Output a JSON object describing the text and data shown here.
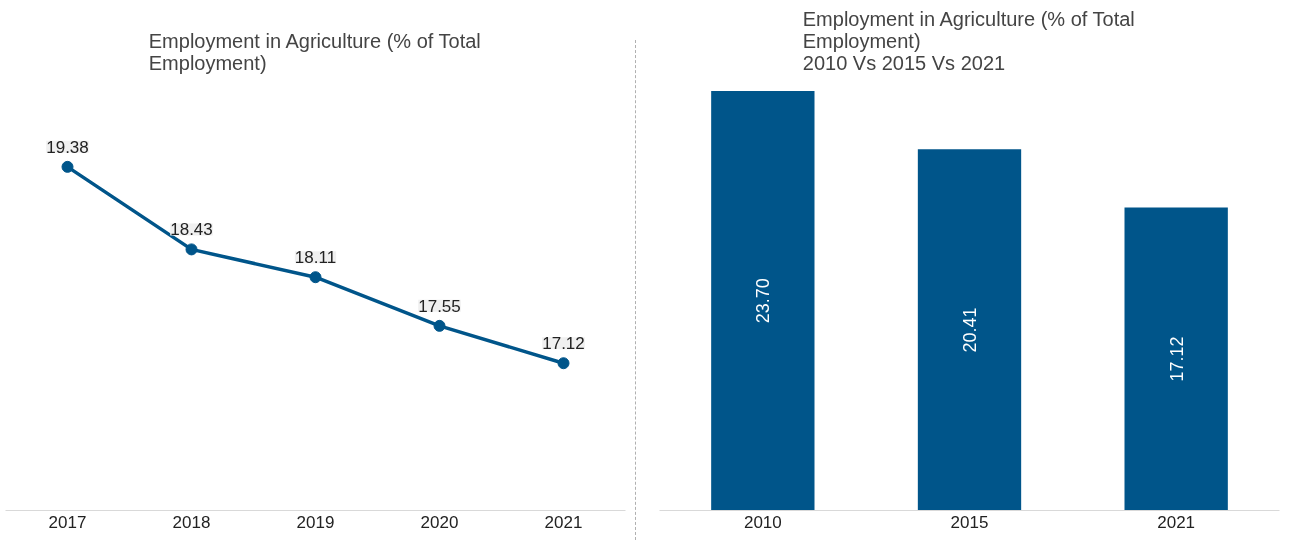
{
  "chart_data": [
    {
      "type": "line",
      "title": "Employment in Agriculture (% of Total Employment)",
      "categories": [
        "2017",
        "2018",
        "2019",
        "2020",
        "2021"
      ],
      "series": [
        {
          "color": "#00558a",
          "values": [
            19.38,
            18.43,
            18.11,
            17.55,
            17.12
          ],
          "value_labels": [
            "19.38",
            "18.43",
            "18.11",
            "17.55",
            "17.12"
          ]
        }
      ],
      "tick_labels": "x",
      "marker": "circle",
      "line_style": "solid"
    },
    {
      "type": "bar",
      "title": "Employment in Agriculture (% of Total Employment)",
      "subtitle": "2010 Vs 2015 Vs 2021",
      "categories": [
        "2010",
        "2015",
        "2021"
      ],
      "series": [
        {
          "color": "#00558a",
          "values": [
            23.7,
            20.41,
            17.12
          ],
          "value_labels": [
            "23.70",
            "20.41",
            "17.12"
          ]
        }
      ],
      "tick_labels": "x"
    }
  ]
}
